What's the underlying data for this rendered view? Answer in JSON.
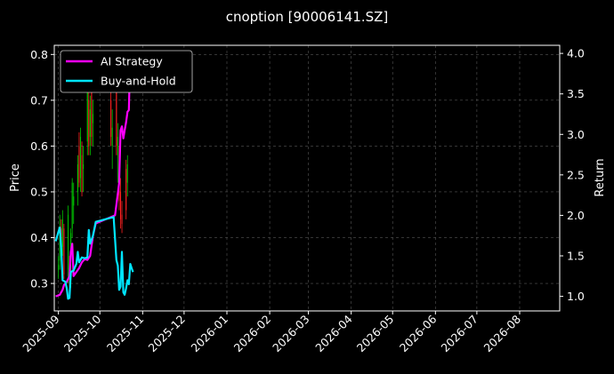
{
  "chart_data": {
    "type": "line",
    "title": "cnoption [90006141.SZ]",
    "ylabel_left": "Price",
    "ylabel_right": "Return",
    "xlim": [
      "2025-08-29",
      "2026-08-30"
    ],
    "ylim_left": [
      0.24,
      0.82
    ],
    "ylim_right": [
      0.82,
      4.1
    ],
    "grid": true,
    "legend_position": "top-left",
    "colors": {
      "background": "#000000",
      "up_candle": "#00c800",
      "down_candle": "#ff2020",
      "ai_strategy": "#ff00ff",
      "buy_and_hold": "#00e5ff"
    },
    "x_ticks": [
      "2025-09",
      "2025-10",
      "2025-11",
      "2025-12",
      "2026-01",
      "2026-02",
      "2026-03",
      "2026-04",
      "2026-05",
      "2026-06",
      "2026-07",
      "2026-08"
    ],
    "y_ticks_left": [
      "0.3",
      "0.4",
      "0.5",
      "0.6",
      "0.7",
      "0.8"
    ],
    "y_ticks_right": [
      "1.0",
      "1.5",
      "2.0",
      "2.5",
      "3.0",
      "3.5",
      "4.0"
    ],
    "legend": [
      "AI Strategy",
      "Buy-and-Hold"
    ],
    "candles": [
      {
        "date": "2025-09-01",
        "open": 0.33,
        "high": 0.36,
        "low": 0.31,
        "close": 0.34
      },
      {
        "date": "2025-09-02",
        "open": 0.35,
        "high": 0.45,
        "low": 0.33,
        "close": 0.42
      },
      {
        "date": "2025-09-03",
        "open": 0.42,
        "high": 0.44,
        "low": 0.36,
        "close": 0.37
      },
      {
        "date": "2025-09-04",
        "open": 0.38,
        "high": 0.46,
        "low": 0.36,
        "close": 0.44
      },
      {
        "date": "2025-09-05",
        "open": 0.42,
        "high": 0.43,
        "low": 0.31,
        "close": 0.32
      },
      {
        "date": "2025-09-08",
        "open": 0.33,
        "high": 0.47,
        "low": 0.3,
        "close": 0.45
      },
      {
        "date": "2025-09-09",
        "open": 0.33,
        "high": 0.36,
        "low": 0.28,
        "close": 0.29
      },
      {
        "date": "2025-09-10",
        "open": 0.32,
        "high": 0.42,
        "low": 0.29,
        "close": 0.41
      },
      {
        "date": "2025-09-11",
        "open": 0.42,
        "high": 0.53,
        "low": 0.4,
        "close": 0.52
      },
      {
        "date": "2025-09-12",
        "open": 0.47,
        "high": 0.52,
        "low": 0.43,
        "close": 0.49
      },
      {
        "date": "2025-09-15",
        "open": 0.5,
        "high": 0.58,
        "low": 0.47,
        "close": 0.56
      },
      {
        "date": "2025-09-16",
        "open": 0.6,
        "high": 0.63,
        "low": 0.51,
        "close": 0.52
      },
      {
        "date": "2025-09-17",
        "open": 0.53,
        "high": 0.64,
        "low": 0.5,
        "close": 0.62
      },
      {
        "date": "2025-09-18",
        "open": 0.58,
        "high": 0.61,
        "low": 0.49,
        "close": 0.5
      },
      {
        "date": "2025-09-19",
        "open": 0.55,
        "high": 0.6,
        "low": 0.5,
        "close": 0.56
      },
      {
        "date": "2025-09-22",
        "open": 0.61,
        "high": 0.76,
        "low": 0.58,
        "close": 0.74
      },
      {
        "date": "2025-09-23",
        "open": 0.7,
        "high": 0.72,
        "low": 0.58,
        "close": 0.6
      },
      {
        "date": "2025-09-24",
        "open": 0.62,
        "high": 0.71,
        "low": 0.58,
        "close": 0.68
      },
      {
        "date": "2025-09-25",
        "open": 0.72,
        "high": 0.73,
        "low": 0.6,
        "close": 0.62
      },
      {
        "date": "2025-09-26",
        "open": 0.65,
        "high": 0.7,
        "low": 0.6,
        "close": 0.67
      },
      {
        "date": "2025-10-09",
        "open": 0.7,
        "high": 0.74,
        "low": 0.6,
        "close": 0.62
      },
      {
        "date": "2025-10-10",
        "open": 0.6,
        "high": 0.68,
        "low": 0.55,
        "close": 0.64
      },
      {
        "date": "2025-10-13",
        "open": 0.72,
        "high": 0.74,
        "low": 0.58,
        "close": 0.6
      },
      {
        "date": "2025-10-14",
        "open": 0.58,
        "high": 0.65,
        "low": 0.52,
        "close": 0.62
      },
      {
        "date": "2025-10-15",
        "open": 0.58,
        "high": 0.6,
        "low": 0.46,
        "close": 0.48
      },
      {
        "date": "2025-10-16",
        "open": 0.5,
        "high": 0.53,
        "low": 0.42,
        "close": 0.44
      },
      {
        "date": "2025-10-17",
        "open": 0.45,
        "high": 0.48,
        "low": 0.41,
        "close": 0.43
      },
      {
        "date": "2025-10-20",
        "open": 0.55,
        "high": 0.57,
        "low": 0.44,
        "close": 0.46
      },
      {
        "date": "2025-10-21",
        "open": 0.52,
        "high": 0.58,
        "low": 0.49,
        "close": 0.56
      }
    ],
    "series": [
      {
        "name": "AI Strategy",
        "points": [
          [
            "2025-08-30",
            1.0
          ],
          [
            "2025-09-02",
            1.02
          ],
          [
            "2025-09-04",
            1.08
          ],
          [
            "2025-09-05",
            1.14
          ],
          [
            "2025-09-07",
            1.18
          ],
          [
            "2025-09-09",
            1.25
          ],
          [
            "2025-09-10",
            1.55
          ],
          [
            "2025-09-11",
            1.65
          ],
          [
            "2025-09-12",
            1.25
          ],
          [
            "2025-09-14",
            1.3
          ],
          [
            "2025-09-16",
            1.35
          ],
          [
            "2025-09-18",
            1.42
          ],
          [
            "2025-09-20",
            1.46
          ],
          [
            "2025-09-22",
            1.45
          ],
          [
            "2025-09-24",
            1.5
          ],
          [
            "2025-09-26",
            1.75
          ],
          [
            "2025-09-28",
            1.9
          ],
          [
            "2025-10-12",
            2.0
          ],
          [
            "2025-10-15",
            2.4
          ],
          [
            "2025-10-16",
            3.05
          ],
          [
            "2025-10-17",
            3.1
          ],
          [
            "2025-10-18",
            2.95
          ],
          [
            "2025-10-19",
            3.05
          ],
          [
            "2025-10-20",
            3.15
          ],
          [
            "2025-10-21",
            3.28
          ],
          [
            "2025-10-22",
            3.3
          ],
          [
            "2025-10-23",
            4.0
          ]
        ]
      },
      {
        "name": "Buy-and-Hold",
        "points": [
          [
            "2025-08-30",
            1.68
          ],
          [
            "2025-09-01",
            1.8
          ],
          [
            "2025-09-02",
            1.85
          ],
          [
            "2025-09-03",
            1.6
          ],
          [
            "2025-09-04",
            1.2
          ],
          [
            "2025-09-06",
            1.18
          ],
          [
            "2025-09-07",
            1.1
          ],
          [
            "2025-09-08",
            0.97
          ],
          [
            "2025-09-09",
            0.98
          ],
          [
            "2025-09-10",
            1.3
          ],
          [
            "2025-09-12",
            1.32
          ],
          [
            "2025-09-14",
            1.4
          ],
          [
            "2025-09-15",
            1.55
          ],
          [
            "2025-09-16",
            1.42
          ],
          [
            "2025-09-18",
            1.48
          ],
          [
            "2025-09-20",
            1.47
          ],
          [
            "2025-09-22",
            1.48
          ],
          [
            "2025-09-23",
            1.82
          ],
          [
            "2025-09-24",
            1.65
          ],
          [
            "2025-09-26",
            1.75
          ],
          [
            "2025-09-28",
            1.92
          ],
          [
            "2025-10-11",
            1.98
          ],
          [
            "2025-10-13",
            1.45
          ],
          [
            "2025-10-14",
            1.38
          ],
          [
            "2025-10-15",
            1.08
          ],
          [
            "2025-10-16",
            1.12
          ],
          [
            "2025-10-17",
            1.55
          ],
          [
            "2025-10-18",
            1.05
          ],
          [
            "2025-10-19",
            1.02
          ],
          [
            "2025-10-20",
            1.1
          ],
          [
            "2025-10-21",
            1.2
          ],
          [
            "2025-10-22",
            1.15
          ],
          [
            "2025-10-23",
            1.4
          ],
          [
            "2025-10-24",
            1.35
          ],
          [
            "2025-10-25",
            1.3
          ]
        ]
      }
    ]
  }
}
